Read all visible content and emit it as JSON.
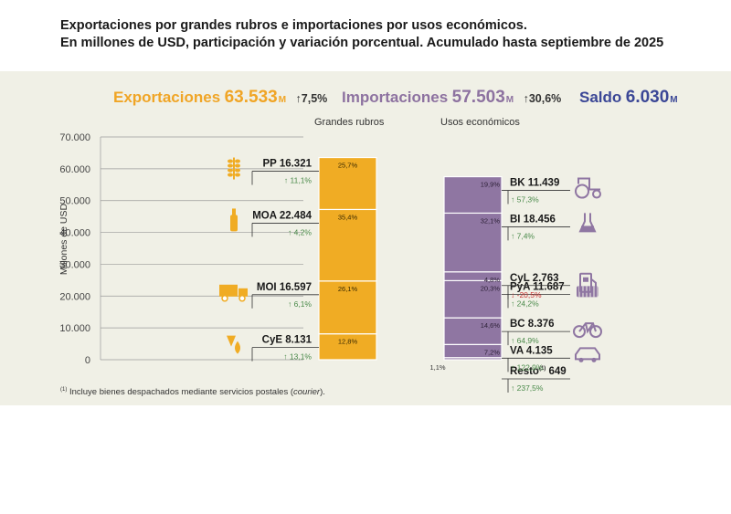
{
  "header": {
    "title_line1": "Exportaciones por grandes rubros e importaciones por usos económicos.",
    "title_line2": "En millones de USD, participación y variación porcentual. Acumulado hasta septiembre de 2025"
  },
  "kpis": {
    "exportaciones": {
      "label": "Exportaciones",
      "value": "63.533",
      "unit": "M",
      "change": "↑7,5%",
      "color": "#f0a526"
    },
    "importaciones": {
      "label": "Importaciones",
      "value": "57.503",
      "unit": "M",
      "change": "↑30,6%",
      "color": "#8d72a0"
    },
    "saldo": {
      "label": "Saldo",
      "value": "6.030",
      "unit": "M",
      "color": "#3b4796"
    }
  },
  "subtitles": {
    "left": "Grandes rubros",
    "right": "Usos económicos"
  },
  "footnote": {
    "marker": "(1)",
    "text_before": " Incluye bienes despachados mediante servicios postales (",
    "italic": "courier",
    "text_after": ")."
  },
  "chart_data": {
    "type": "bar",
    "title": "Exportaciones por grandes rubros e importaciones por usos económicos",
    "ylabel": "Millones de USD",
    "ylim": [
      0,
      70000
    ],
    "yticks": [
      "0",
      "10.000",
      "20.000",
      "30.000",
      "40.000",
      "50.000",
      "60.000",
      "70.000"
    ],
    "colors": {
      "export": "#f0ac24",
      "import": "#8f76a2",
      "up": "#4a8a4a",
      "down": "#cc3333",
      "label": "#1a1a1a",
      "icon": "#f0ac24",
      "iconImp": "#8f76a2"
    },
    "exports": [
      {
        "code": "CyE",
        "value": 8131,
        "value_label": "8.131",
        "share": "12,8%",
        "change": "↑ 13,1%",
        "dir": "up",
        "icon": "oil-drop-icon"
      },
      {
        "code": "MOI",
        "value": 16597,
        "value_label": "16.597",
        "share": "26,1%",
        "change": "↑ 6,1%",
        "dir": "up",
        "icon": "truck-icon"
      },
      {
        "code": "MOA",
        "value": 22484,
        "value_label": "22.484",
        "share": "35,4%",
        "change": "↑ 4,2%",
        "dir": "up",
        "icon": "bottle-icon"
      },
      {
        "code": "PP",
        "value": 16321,
        "value_label": "16.321",
        "share": "25,7%",
        "change": "↑ 11,1%",
        "dir": "up",
        "icon": "wheat-icon"
      }
    ],
    "imports": [
      {
        "code": "Resto",
        "sup": "(1)",
        "value": 649,
        "value_label": "649",
        "share": "1,1%",
        "change": "↑ 237,5%",
        "dir": "up",
        "icon": ""
      },
      {
        "code": "VA",
        "value": 4135,
        "value_label": "4.135",
        "share": "7,2%",
        "change": "↑ 122,9%",
        "dir": "up",
        "icon": "car-icon"
      },
      {
        "code": "BC",
        "value": 8376,
        "value_label": "8.376",
        "share": "14,6%",
        "change": "↑ 64,9%",
        "dir": "up",
        "icon": "bicycle-icon"
      },
      {
        "code": "PyA",
        "value": 11687,
        "value_label": "11.687",
        "share": "20,3%",
        "change": "↑ 24,2%",
        "dir": "up",
        "icon": "gear-part-icon"
      },
      {
        "code": "CyL",
        "value": 2763,
        "value_label": "2.763",
        "share": "4,8%",
        "change": "↓ -20,5%",
        "dir": "down",
        "icon": "fuel-pump-icon"
      },
      {
        "code": "BI",
        "value": 18456,
        "value_label": "18.456",
        "share": "32,1%",
        "change": "↑ 7,4%",
        "dir": "up",
        "icon": "flask-icon"
      },
      {
        "code": "BK",
        "value": 11439,
        "value_label": "11.439",
        "share": "19,9%",
        "change": "↑ 57,3%",
        "dir": "up",
        "icon": "tractor-icon"
      }
    ]
  }
}
